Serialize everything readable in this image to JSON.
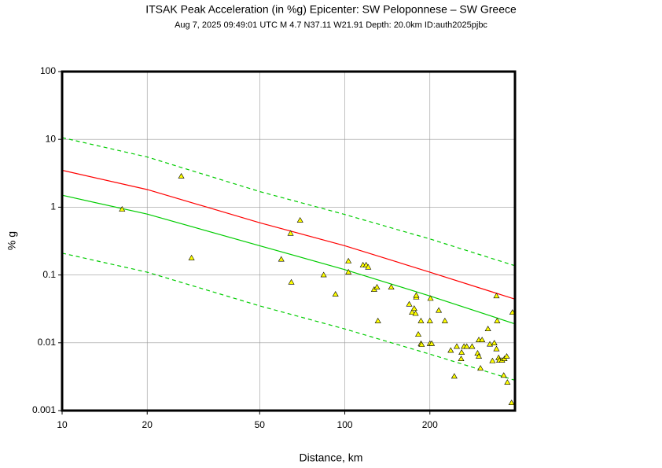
{
  "chart_data": {
    "type": "scatter",
    "title": "ITSAK Peak Acceleration (in %g) Epicenter: SW Peloponnese – SW Greece",
    "subtitle": "Aug  7, 2025 09:49:01 UTC    M 4.7    N37.11 W21.91    Depth: 20.0km    ID:auth2025pjbc",
    "x_label": "Distance, km",
    "y_label": "% g",
    "x_log": true,
    "y_log": true,
    "grid": true,
    "xlim": [
      10,
      400
    ],
    "ylim": [
      0.001,
      100
    ],
    "xticks": [
      10,
      20,
      50,
      100,
      200
    ],
    "yticks": [
      0.001,
      0.01,
      0.1,
      1,
      10,
      100
    ],
    "series": [
      {
        "mark": "point",
        "color": "#ffff00",
        "x": [
          16.3,
          26.4,
          28.7,
          59.6,
          64.3,
          64.7,
          69.5,
          84.2,
          92.7,
          103,
          103,
          116,
          119,
          121,
          127,
          130,
          131,
          146,
          169,
          173,
          176,
          178,
          179,
          179,
          182,
          186,
          186,
          187,
          200,
          201,
          200,
          203,
          215,
          226,
          237,
          244,
          249,
          259,
          264,
          270,
          258,
          282,
          295,
          298,
          298,
          302,
          306,
          321,
          326,
          333,
          338,
          344,
          346,
          344,
          350,
          352,
          360,
          367,
          374,
          365,
          376,
          389,
          392
        ],
        "values": [
          0.93,
          2.86,
          0.178,
          0.17,
          0.41,
          0.078,
          0.64,
          0.1,
          0.052,
          0.11,
          0.16,
          0.14,
          0.14,
          0.13,
          0.061,
          0.066,
          0.021,
          0.066,
          0.037,
          0.028,
          0.032,
          0.027,
          0.047,
          0.05,
          0.0133,
          0.021,
          0.0097,
          0.0094,
          0.021,
          0.045,
          0.0097,
          0.0097,
          0.03,
          0.021,
          0.0077,
          0.0032,
          0.0088,
          0.0072,
          0.0088,
          0.0088,
          0.0058,
          0.0088,
          0.007,
          0.011,
          0.0063,
          0.0042,
          0.011,
          0.016,
          0.0095,
          0.0054,
          0.0099,
          0.049,
          0.021,
          0.0081,
          0.006,
          0.0055,
          0.0055,
          0.0058,
          0.0063,
          0.0033,
          0.0026,
          0.0013,
          0.028
        ]
      },
      {
        "mark": "line",
        "color": "#ff0000",
        "dashed": false,
        "x": [
          10,
          20,
          50,
          100,
          200,
          400
        ],
        "values": [
          3.5,
          1.82,
          0.59,
          0.27,
          0.11,
          0.044
        ]
      },
      {
        "mark": "line",
        "color": "#00cc00",
        "dashed": false,
        "x": [
          10,
          20,
          50,
          100,
          200,
          400
        ],
        "values": [
          1.5,
          0.79,
          0.27,
          0.12,
          0.049,
          0.019
        ]
      },
      {
        "mark": "line",
        "color": "#00cc00",
        "dashed": true,
        "x": [
          10,
          20,
          50,
          100,
          200,
          400
        ],
        "values": [
          10.6,
          5.5,
          1.7,
          0.78,
          0.34,
          0.137
        ]
      },
      {
        "mark": "line",
        "color": "#00cc00",
        "dashed": true,
        "x": [
          10,
          20,
          50,
          100,
          200,
          400
        ],
        "values": [
          0.21,
          0.11,
          0.035,
          0.016,
          0.0068,
          0.0028
        ]
      }
    ]
  }
}
